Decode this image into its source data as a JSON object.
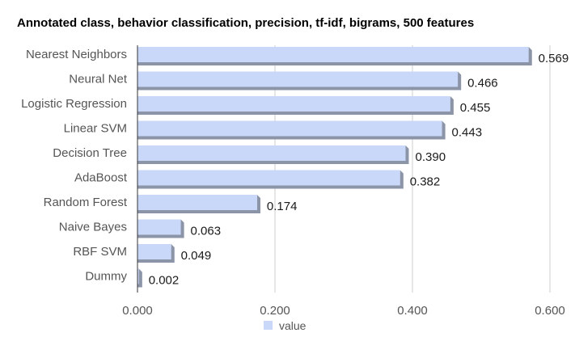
{
  "chart_data": {
    "type": "bar",
    "orientation": "horizontal",
    "title": "Annotated class, behavior classification, precision, tf-idf, bigrams, 500 features",
    "categories": [
      "Nearest Neighbors",
      "Neural Net",
      "Logistic Regression",
      "Linear SVM",
      "Decision Tree",
      "AdaBoost",
      "Random Forest",
      "Naive Bayes",
      "RBF SVM",
      "Dummy"
    ],
    "series": [
      {
        "name": "value",
        "values": [
          0.569,
          0.466,
          0.455,
          0.443,
          0.39,
          0.382,
          0.174,
          0.063,
          0.049,
          0.002
        ]
      }
    ],
    "value_labels": [
      "0.569",
      "0.466",
      "0.455",
      "0.443",
      "0.390",
      "0.382",
      "0.174",
      "0.063",
      "0.049",
      "0.002"
    ],
    "xlim": [
      0,
      0.6
    ],
    "xticks": [
      0,
      0.2,
      0.4,
      0.6
    ],
    "xtick_labels": [
      "0.000",
      "0.200",
      "0.400",
      "0.600"
    ],
    "xlabel": "",
    "ylabel": "",
    "grid": true,
    "legend_position": "bottom",
    "colors": {
      "bar_face": "#c9d7f8",
      "bar_shadow": "#8c95a8",
      "grid": "#cccccc",
      "axis": "#333333"
    }
  }
}
